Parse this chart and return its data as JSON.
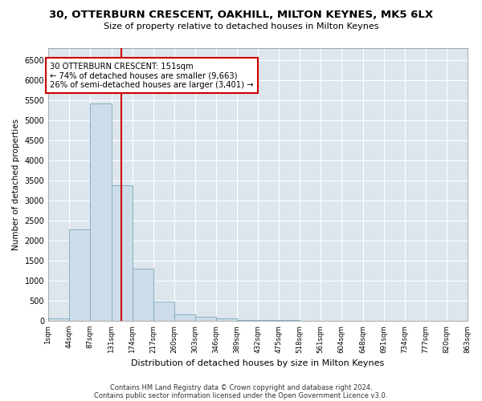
{
  "title": "30, OTTERBURN CRESCENT, OAKHILL, MILTON KEYNES, MK5 6LX",
  "subtitle": "Size of property relative to detached houses in Milton Keynes",
  "xlabel": "Distribution of detached houses by size in Milton Keynes",
  "ylabel": "Number of detached properties",
  "bar_color": "#ccdce8",
  "bar_edge_color": "#7aaabb",
  "background_color": "#dde5ed",
  "grid_color": "#ffffff",
  "vline_x": 151,
  "vline_color": "#cc0000",
  "annotation_text": "30 OTTERBURN CRESCENT: 151sqm\n← 74% of detached houses are smaller (9,663)\n26% of semi-detached houses are larger (3,401) →",
  "annotation_box_color": "#ffffff",
  "annotation_box_edge": "#cc0000",
  "footer_line1": "Contains HM Land Registry data © Crown copyright and database right 2024.",
  "footer_line2": "Contains public sector information licensed under the Open Government Licence v3.0.",
  "bin_edges": [
    1,
    44,
    87,
    131,
    174,
    217,
    260,
    303,
    346,
    389,
    432,
    475,
    518,
    561,
    604,
    648,
    691,
    734,
    777,
    820,
    863
  ],
  "bar_heights": [
    70,
    2280,
    5430,
    3390,
    1310,
    480,
    160,
    100,
    70,
    30,
    30,
    30,
    10,
    5,
    5,
    5,
    5,
    5,
    5,
    5
  ],
  "ylim": [
    0,
    6800
  ],
  "yticks": [
    0,
    500,
    1000,
    1500,
    2000,
    2500,
    3000,
    3500,
    4000,
    4500,
    5000,
    5500,
    6000,
    6500
  ],
  "fig_width": 6.0,
  "fig_height": 5.0,
  "dpi": 100
}
